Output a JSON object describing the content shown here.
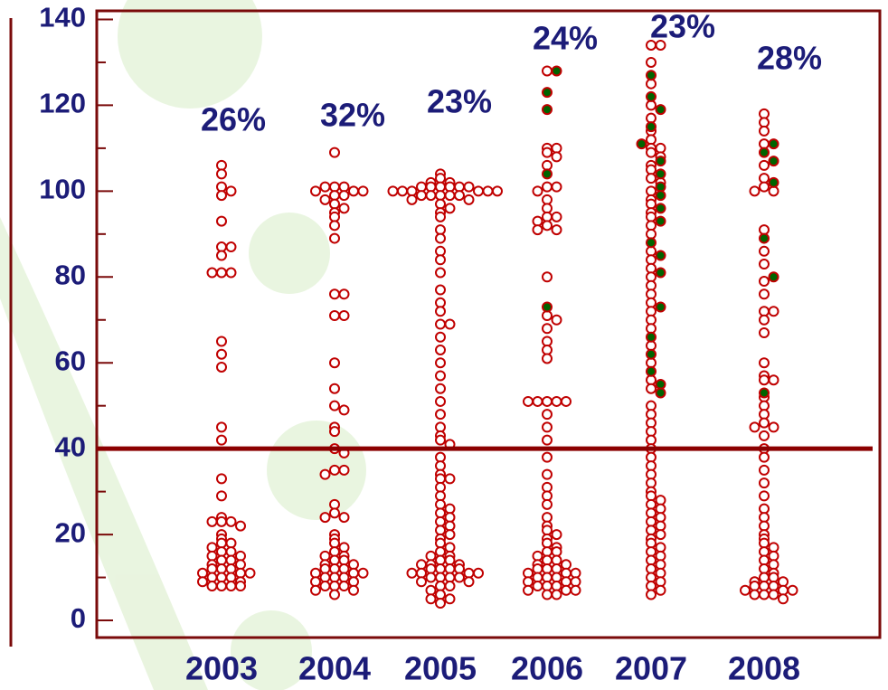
{
  "chart_data": {
    "type": "beeswarm",
    "categories": [
      "2003",
      "2004",
      "2005",
      "2006",
      "2007",
      "2008"
    ],
    "annotations": [
      "26%",
      "32%",
      "23%",
      "24%",
      "23%",
      "28%"
    ],
    "color": "#c00000",
    "highlight_color": "#006400",
    "threshold": 40,
    "threshold_color": "#8b0000",
    "ylim": [
      -4,
      142
    ],
    "yticks": [
      0,
      20,
      40,
      60,
      80,
      100,
      120,
      140
    ],
    "minor_yticks": [
      10,
      30,
      50,
      70,
      90,
      110,
      130
    ],
    "groups": [
      {
        "values": [
          106,
          104,
          101,
          100,
          99,
          93,
          87,
          87,
          85,
          81,
          81,
          81,
          65,
          62,
          59,
          45,
          42,
          33,
          29,
          24,
          23,
          23,
          23,
          22,
          20,
          19,
          18,
          18,
          17,
          16,
          16,
          15,
          15,
          14,
          14,
          13,
          13,
          12,
          12,
          12,
          11,
          11,
          11,
          10,
          10,
          10,
          9,
          9,
          8,
          8,
          8,
          8
        ],
        "highlight_values": []
      },
      {
        "values": [
          109,
          101,
          101,
          101,
          100,
          100,
          100,
          99,
          99,
          98,
          97,
          96,
          95,
          94,
          92,
          89,
          76,
          76,
          71,
          71,
          60,
          54,
          50,
          49,
          45,
          44,
          40,
          39,
          35,
          35,
          34,
          27,
          25,
          24,
          24,
          20,
          19,
          18,
          17,
          16,
          15,
          15,
          14,
          14,
          13,
          13,
          12,
          12,
          12,
          11,
          11,
          11,
          10,
          10,
          10,
          9,
          9,
          8,
          8,
          8,
          7,
          7,
          6
        ],
        "highlight_values": []
      },
      {
        "values": [
          104,
          103,
          102,
          102,
          101,
          101,
          101,
          101,
          101,
          101,
          100,
          100,
          100,
          100,
          100,
          100,
          99,
          99,
          99,
          99,
          99,
          98,
          98,
          97,
          96,
          95,
          94,
          91,
          89,
          86,
          84,
          81,
          77,
          74,
          72,
          69,
          69,
          66,
          63,
          60,
          57,
          54,
          51,
          48,
          45,
          43,
          42,
          41,
          38,
          36,
          34,
          33,
          33,
          31,
          29,
          27,
          26,
          25,
          24,
          23,
          22,
          21,
          20,
          19,
          18,
          17,
          16,
          15,
          15,
          14,
          14,
          13,
          13,
          13,
          12,
          12,
          12,
          12,
          11,
          11,
          11,
          11,
          10,
          10,
          10,
          10,
          9,
          9,
          8,
          8,
          7,
          6,
          5,
          5,
          4
        ],
        "highlight_values": []
      },
      {
        "values": [
          128,
          110,
          110,
          109,
          108,
          106,
          101,
          101,
          100,
          98,
          96,
          94,
          94,
          93,
          92,
          91,
          91,
          80,
          71,
          70,
          68,
          65,
          63,
          61,
          51,
          51,
          51,
          51,
          51,
          48,
          45,
          42,
          38,
          34,
          31,
          29,
          27,
          24,
          22,
          21,
          20,
          19,
          18,
          17,
          16,
          16,
          15,
          14,
          14,
          13,
          13,
          12,
          12,
          12,
          11,
          11,
          11,
          10,
          10,
          10,
          9,
          9,
          9,
          8,
          8,
          8,
          7,
          7,
          7,
          6,
          6
        ],
        "highlight_values": [
          128,
          123,
          119,
          104,
          73
        ]
      },
      {
        "values": [
          134,
          134,
          130,
          125,
          120,
          117,
          114,
          112,
          110,
          110,
          109,
          108,
          106,
          105,
          103,
          102,
          100,
          98,
          97,
          95,
          94,
          92,
          90,
          86,
          84,
          82,
          80,
          78,
          76,
          74,
          72,
          70,
          68,
          64,
          60,
          56,
          54,
          50,
          48,
          46,
          44,
          42,
          40,
          38,
          36,
          34,
          32,
          30,
          29,
          28,
          27,
          26,
          25,
          24,
          23,
          22,
          21,
          20,
          19,
          18,
          17,
          16,
          15,
          14,
          13,
          12,
          11,
          10,
          9,
          8,
          7,
          6
        ],
        "highlight_values": [
          127,
          122,
          119,
          115,
          111,
          107,
          104,
          101,
          99,
          96,
          93,
          88,
          85,
          81,
          73,
          66,
          62,
          58,
          55,
          53
        ]
      },
      {
        "values": [
          118,
          116,
          114,
          111,
          106,
          103,
          101,
          100,
          100,
          91,
          86,
          83,
          79,
          76,
          72,
          72,
          70,
          67,
          60,
          57,
          56,
          56,
          52,
          50,
          48,
          46,
          45,
          45,
          43,
          40,
          38,
          35,
          32,
          29,
          26,
          24,
          22,
          20,
          19,
          18,
          17,
          16,
          15,
          14,
          13,
          12,
          11,
          10,
          10,
          9,
          9,
          8,
          8,
          8,
          7,
          7,
          7,
          6,
          6,
          6,
          5
        ],
        "highlight_values": [
          111,
          109,
          107,
          102,
          89,
          80,
          53
        ]
      }
    ]
  }
}
